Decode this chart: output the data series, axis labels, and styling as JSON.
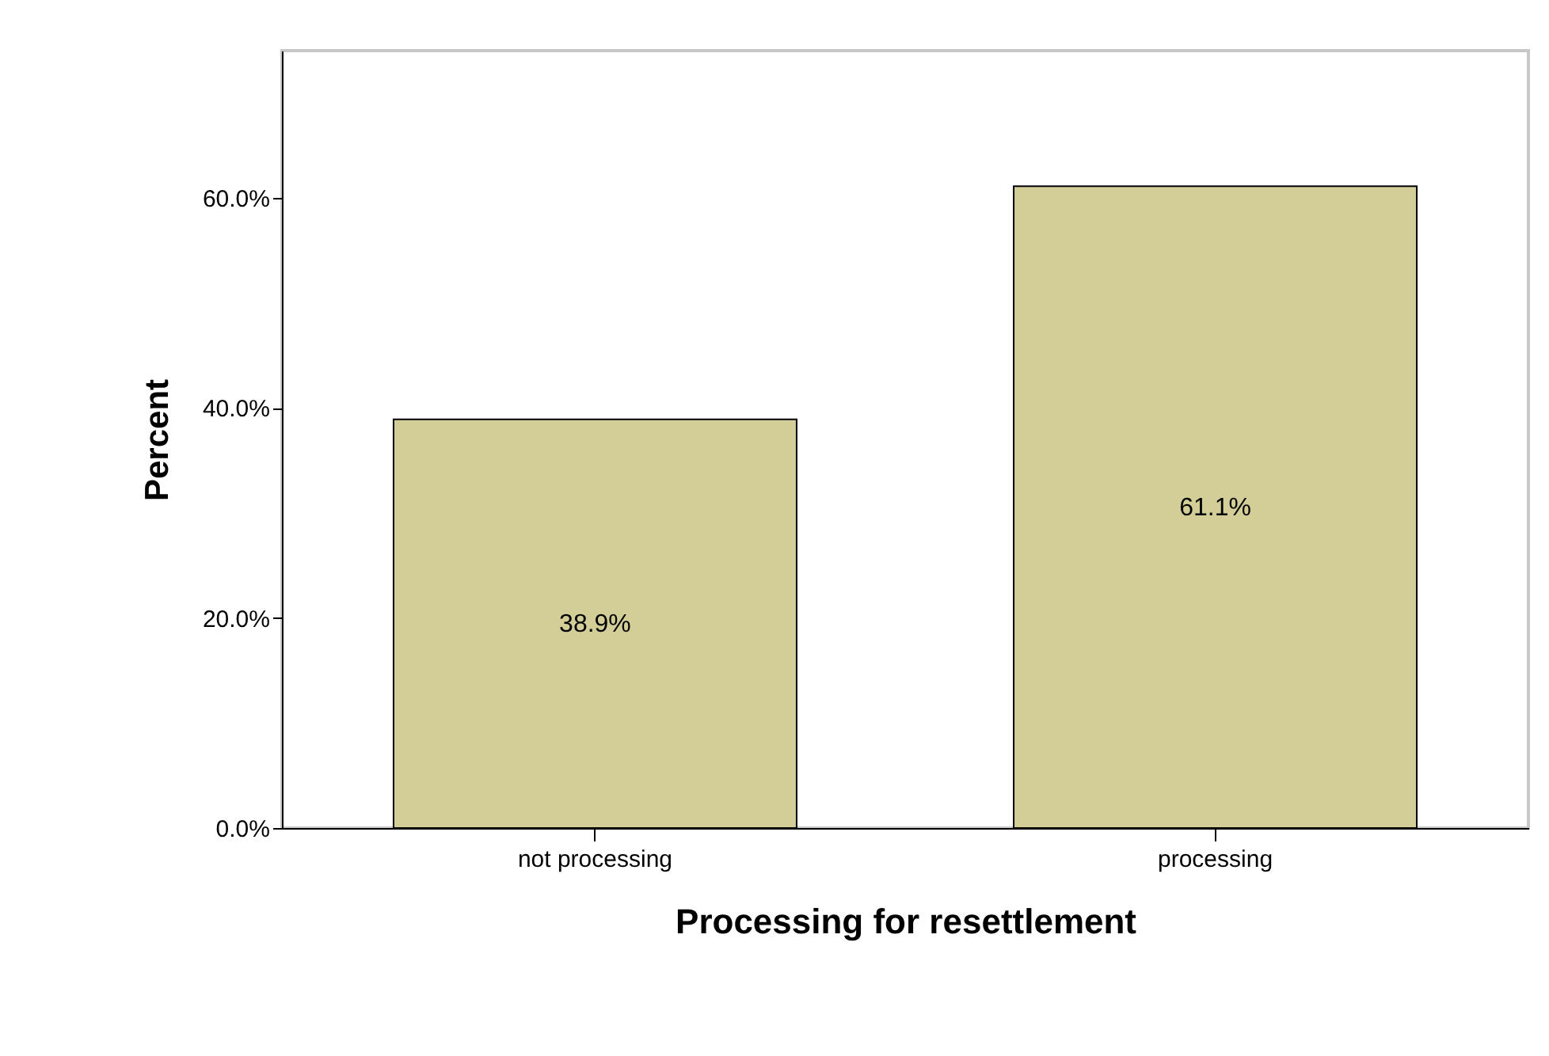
{
  "chart_data": {
    "type": "bar",
    "categories": [
      "not processing",
      "processing"
    ],
    "values": [
      38.9,
      61.1
    ],
    "value_labels": [
      "38.9%",
      "61.1%"
    ],
    "color": "#d3ce97",
    "xlabel": "Processing for resettlement",
    "ylabel": "Percent",
    "ylim": [
      0,
      74
    ],
    "yticks": [
      {
        "value": 0,
        "label": "0.0%"
      },
      {
        "value": 20,
        "label": "20.0%"
      },
      {
        "value": 40,
        "label": "40.0%"
      },
      {
        "value": 60,
        "label": "60.0%"
      }
    ],
    "grid": false
  }
}
